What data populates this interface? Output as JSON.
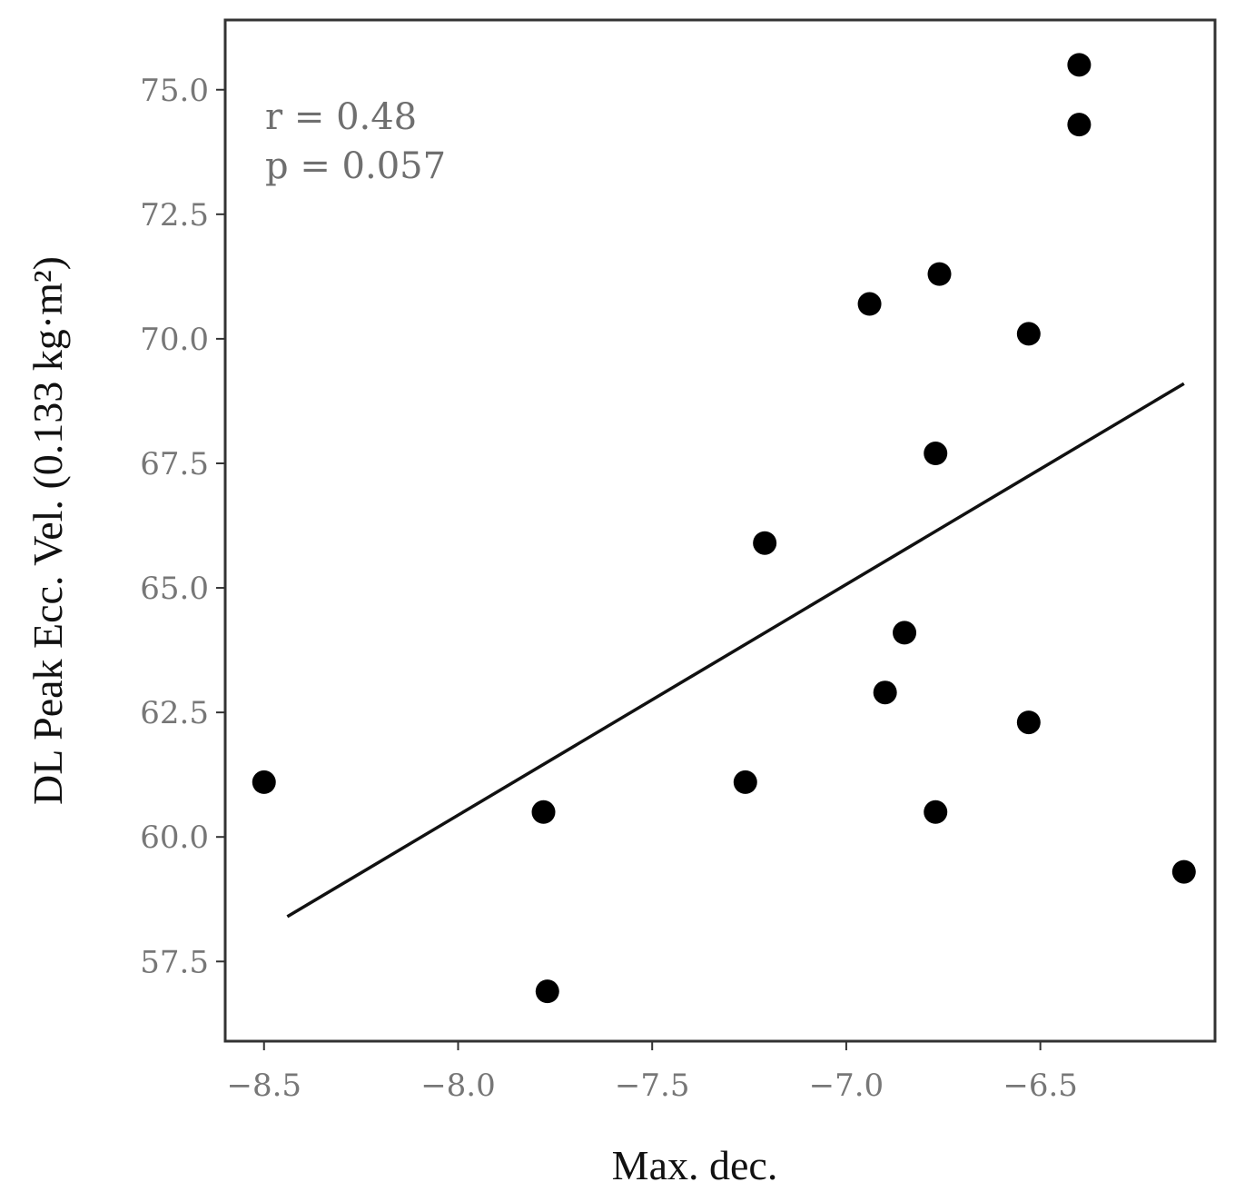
{
  "chart_data": {
    "type": "scatter",
    "title": "",
    "xlabel": "Max. dec.",
    "ylabel": "DL Peak Ecc. Vel. (0.133 kg·m²)",
    "xlim": [
      -8.6,
      -6.05
    ],
    "ylim": [
      55.9,
      76.4
    ],
    "x_ticks": [
      -8.5,
      -8.0,
      -7.5,
      -7.0,
      -6.5
    ],
    "x_tick_labels": [
      "−8.5",
      "−8.0",
      "−7.5",
      "−7.0",
      "−6.5"
    ],
    "y_ticks": [
      57.5,
      60.0,
      62.5,
      65.0,
      67.5,
      70.0,
      72.5,
      75.0
    ],
    "y_tick_labels": [
      "57.5",
      "60.0",
      "62.5",
      "65.0",
      "67.5",
      "70.0",
      "72.5",
      "75.0"
    ],
    "grid": false,
    "points": [
      {
        "x": -8.5,
        "y": 61.1
      },
      {
        "x": -7.78,
        "y": 60.5
      },
      {
        "x": -7.77,
        "y": 56.9
      },
      {
        "x": -7.26,
        "y": 61.1
      },
      {
        "x": -7.21,
        "y": 65.9
      },
      {
        "x": -6.94,
        "y": 70.7
      },
      {
        "x": -6.9,
        "y": 62.9
      },
      {
        "x": -6.85,
        "y": 64.1
      },
      {
        "x": -6.76,
        "y": 71.3
      },
      {
        "x": -6.77,
        "y": 67.7
      },
      {
        "x": -6.77,
        "y": 60.5
      },
      {
        "x": -6.53,
        "y": 70.1
      },
      {
        "x": -6.53,
        "y": 62.3
      },
      {
        "x": -6.4,
        "y": 75.5
      },
      {
        "x": -6.4,
        "y": 74.3
      },
      {
        "x": -6.13,
        "y": 59.3
      }
    ],
    "fit_line": {
      "x": [
        -8.44,
        -6.13
      ],
      "y": [
        58.4,
        69.1
      ]
    },
    "annotations": [
      "r = 0.48",
      "p = 0.057"
    ],
    "colors": {
      "points": "#000000",
      "line": "#111111",
      "frame": "#333333",
      "ticks": "#777777"
    }
  }
}
